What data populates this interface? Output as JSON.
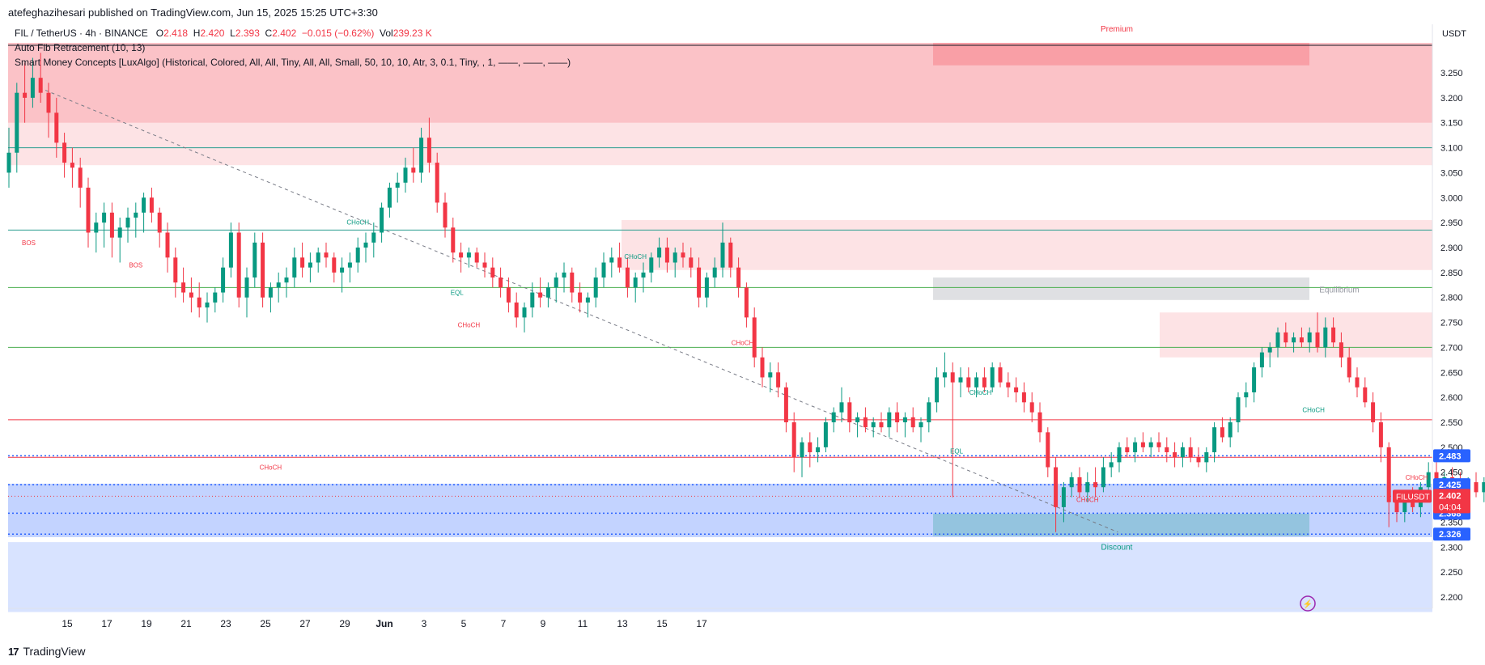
{
  "header": {
    "publisher": "atefeghazihesari published on TradingView.com, Jun 15, 2025 15:25 UTC+3:30"
  },
  "legend": {
    "symbol": "FIL / TetherUS · 4h · BINANCE",
    "o_label": "O",
    "o_value": "2.418",
    "h_label": "H",
    "h_value": "2.420",
    "l_label": "L",
    "l_value": "2.393",
    "c_label": "C",
    "c_value": "2.402",
    "change": "−0.015 (−0.62%)",
    "vol_label": "Vol",
    "vol_value": "239.23 K"
  },
  "indicators": [
    "Auto Fib Retracement (10, 13)",
    "Smart Money Concepts [LuxAlgo] (Historical, Colored, All, All, Tiny, All, All, Small, 50, 10, 10, Atr, 3, 0.1, Tiny, , 1, ——, ——, ——)"
  ],
  "brand": {
    "name": "TradingView"
  },
  "chart_data": {
    "type": "candlestick",
    "currency": "USDT",
    "symbol_tag": "FILUSDT",
    "last_price": "2.402",
    "countdown": "04:04",
    "ylim": [
      2.17,
      3.32
    ],
    "y_ticks": [
      "3.250",
      "3.200",
      "3.150",
      "3.100",
      "3.050",
      "3.000",
      "2.950",
      "2.900",
      "2.850",
      "2.800",
      "2.750",
      "2.700",
      "2.650",
      "2.600",
      "2.550",
      "2.500",
      "2.450",
      "2.400",
      "2.350",
      "2.300",
      "2.250",
      "2.200"
    ],
    "x_ticks": [
      "15",
      "17",
      "19",
      "21",
      "23",
      "25",
      "27",
      "29",
      "Jun",
      "3",
      "5",
      "7",
      "9",
      "11",
      "13",
      "15",
      "17"
    ],
    "price_labels": [
      {
        "value": 2.483,
        "text": "2.483"
      },
      {
        "value": 2.425,
        "text": "2.425"
      },
      {
        "value": 2.368,
        "text": "2.368"
      },
      {
        "value": 2.326,
        "text": "2.326"
      }
    ],
    "zone_labels": {
      "premium": "Premium",
      "equilibrium": "Equilibrium",
      "discount": "Discount"
    },
    "structure_labels": [
      {
        "text": "BOS",
        "x": 0.5,
        "y": 2.905,
        "color": "#f23645"
      },
      {
        "text": "BOS",
        "x": 3.2,
        "y": 2.86,
        "color": "#f23645"
      },
      {
        "text": "CHoCH",
        "x": 8.8,
        "y": 2.946,
        "color": "#089981"
      },
      {
        "text": "EQL",
        "x": 11.3,
        "y": 2.805,
        "color": "#089981"
      },
      {
        "text": "CHoCH",
        "x": 11.6,
        "y": 2.74,
        "color": "#f23645"
      },
      {
        "text": "CHoCH",
        "x": 15.8,
        "y": 2.877,
        "color": "#089981"
      },
      {
        "text": "CHoCH",
        "x": 18.5,
        "y": 2.705,
        "color": "#f23645"
      },
      {
        "text": "CHoCH",
        "x": 6.6,
        "y": 2.455,
        "color": "#f23645"
      },
      {
        "text": "CHoCH",
        "x": 24.5,
        "y": 2.605,
        "color": "#089981"
      },
      {
        "text": "EQL",
        "x": 23.9,
        "y": 2.488,
        "color": "#089981"
      },
      {
        "text": "CHoCH",
        "x": 27.2,
        "y": 2.39,
        "color": "#f23645"
      },
      {
        "text": "CHoCH",
        "x": 32.9,
        "y": 2.57,
        "color": "#089981"
      },
      {
        "text": "CHoCH",
        "x": 35.5,
        "y": 2.435,
        "color": "#f23645"
      }
    ],
    "candles": [
      [
        0.0,
        3.05,
        3.14,
        3.02,
        3.09
      ],
      [
        0.2,
        3.09,
        3.23,
        3.05,
        3.21
      ],
      [
        0.4,
        3.21,
        3.27,
        3.15,
        3.2
      ],
      [
        0.6,
        3.2,
        3.28,
        3.18,
        3.24
      ],
      [
        0.8,
        3.24,
        3.29,
        3.19,
        3.21
      ],
      [
        1.0,
        3.21,
        3.23,
        3.12,
        3.17
      ],
      [
        1.2,
        3.17,
        3.2,
        3.08,
        3.11
      ],
      [
        1.4,
        3.11,
        3.13,
        3.04,
        3.07
      ],
      [
        1.6,
        3.07,
        3.1,
        3.02,
        3.06
      ],
      [
        1.8,
        3.06,
        3.08,
        2.98,
        3.02
      ],
      [
        2.0,
        3.02,
        3.04,
        2.9,
        2.93
      ],
      [
        2.2,
        2.93,
        2.97,
        2.89,
        2.95
      ],
      [
        2.4,
        2.95,
        2.99,
        2.9,
        2.97
      ],
      [
        2.6,
        2.97,
        2.99,
        2.88,
        2.92
      ],
      [
        2.8,
        2.92,
        2.96,
        2.87,
        2.94
      ],
      [
        3.0,
        2.94,
        2.98,
        2.91,
        2.96
      ],
      [
        3.2,
        2.96,
        2.99,
        2.92,
        2.97
      ],
      [
        3.4,
        2.97,
        3.01,
        2.93,
        3.0
      ],
      [
        3.6,
        3.0,
        3.02,
        2.95,
        2.97
      ],
      [
        3.8,
        2.97,
        2.98,
        2.9,
        2.93
      ],
      [
        4.0,
        2.93,
        2.95,
        2.85,
        2.88
      ],
      [
        4.2,
        2.88,
        2.9,
        2.8,
        2.83
      ],
      [
        4.4,
        2.83,
        2.86,
        2.79,
        2.81
      ],
      [
        4.6,
        2.81,
        2.84,
        2.77,
        2.8
      ],
      [
        4.8,
        2.8,
        2.83,
        2.76,
        2.78
      ],
      [
        5.0,
        2.78,
        2.81,
        2.75,
        2.79
      ],
      [
        5.2,
        2.79,
        2.82,
        2.77,
        2.81
      ],
      [
        5.4,
        2.81,
        2.88,
        2.79,
        2.86
      ],
      [
        5.6,
        2.86,
        2.95,
        2.84,
        2.93
      ],
      [
        5.8,
        2.93,
        2.95,
        2.78,
        2.8
      ],
      [
        6.0,
        2.8,
        2.86,
        2.76,
        2.84
      ],
      [
        6.2,
        2.84,
        2.93,
        2.82,
        2.91
      ],
      [
        6.4,
        2.91,
        2.93,
        2.78,
        2.8
      ],
      [
        6.6,
        2.8,
        2.83,
        2.77,
        2.82
      ],
      [
        6.8,
        2.82,
        2.85,
        2.79,
        2.83
      ],
      [
        7.0,
        2.83,
        2.86,
        2.8,
        2.84
      ],
      [
        7.2,
        2.84,
        2.9,
        2.82,
        2.88
      ],
      [
        7.4,
        2.88,
        2.91,
        2.84,
        2.86
      ],
      [
        7.6,
        2.86,
        2.89,
        2.83,
        2.87
      ],
      [
        7.8,
        2.87,
        2.9,
        2.85,
        2.89
      ],
      [
        8.0,
        2.89,
        2.91,
        2.86,
        2.88
      ],
      [
        8.2,
        2.88,
        2.89,
        2.83,
        2.85
      ],
      [
        8.4,
        2.85,
        2.88,
        2.81,
        2.86
      ],
      [
        8.6,
        2.86,
        2.89,
        2.83,
        2.87
      ],
      [
        8.8,
        2.87,
        2.92,
        2.85,
        2.9
      ],
      [
        9.0,
        2.9,
        2.93,
        2.87,
        2.91
      ],
      [
        9.2,
        2.91,
        2.95,
        2.88,
        2.93
      ],
      [
        9.4,
        2.93,
        2.99,
        2.91,
        2.98
      ],
      [
        9.6,
        2.98,
        3.03,
        2.96,
        3.02
      ],
      [
        9.8,
        3.02,
        3.05,
        2.99,
        3.03
      ],
      [
        10.0,
        3.03,
        3.08,
        3.01,
        3.06
      ],
      [
        10.2,
        3.06,
        3.1,
        3.03,
        3.05
      ],
      [
        10.4,
        3.05,
        3.14,
        3.03,
        3.12
      ],
      [
        10.6,
        3.12,
        3.16,
        3.05,
        3.07
      ],
      [
        10.8,
        3.07,
        3.09,
        2.97,
        2.99
      ],
      [
        11.0,
        2.99,
        3.01,
        2.92,
        2.94
      ],
      [
        11.2,
        2.94,
        2.96,
        2.87,
        2.89
      ],
      [
        11.4,
        2.89,
        2.91,
        2.85,
        2.88
      ],
      [
        11.6,
        2.88,
        2.9,
        2.86,
        2.89
      ],
      [
        11.8,
        2.89,
        2.9,
        2.86,
        2.87
      ],
      [
        12.0,
        2.87,
        2.89,
        2.84,
        2.86
      ],
      [
        12.2,
        2.86,
        2.88,
        2.82,
        2.84
      ],
      [
        12.4,
        2.84,
        2.86,
        2.8,
        2.82
      ],
      [
        12.6,
        2.82,
        2.84,
        2.77,
        2.79
      ],
      [
        12.8,
        2.79,
        2.81,
        2.74,
        2.76
      ],
      [
        13.0,
        2.76,
        2.79,
        2.73,
        2.78
      ],
      [
        13.2,
        2.78,
        2.83,
        2.76,
        2.81
      ],
      [
        13.4,
        2.81,
        2.84,
        2.78,
        2.8
      ],
      [
        13.6,
        2.8,
        2.83,
        2.78,
        2.82
      ],
      [
        13.8,
        2.82,
        2.85,
        2.79,
        2.84
      ],
      [
        14.0,
        2.84,
        2.87,
        2.81,
        2.85
      ],
      [
        14.2,
        2.85,
        2.86,
        2.79,
        2.81
      ],
      [
        14.4,
        2.81,
        2.83,
        2.77,
        2.79
      ],
      [
        14.6,
        2.79,
        2.81,
        2.76,
        2.8
      ],
      [
        14.8,
        2.8,
        2.86,
        2.78,
        2.84
      ],
      [
        15.0,
        2.84,
        2.89,
        2.82,
        2.87
      ],
      [
        15.2,
        2.87,
        2.9,
        2.84,
        2.88
      ],
      [
        15.4,
        2.88,
        2.91,
        2.85,
        2.86
      ],
      [
        15.6,
        2.86,
        2.88,
        2.8,
        2.82
      ],
      [
        15.8,
        2.82,
        2.85,
        2.79,
        2.84
      ],
      [
        16.0,
        2.84,
        2.87,
        2.81,
        2.85
      ],
      [
        16.2,
        2.85,
        2.89,
        2.83,
        2.88
      ],
      [
        16.4,
        2.88,
        2.92,
        2.86,
        2.9
      ],
      [
        16.6,
        2.9,
        2.92,
        2.85,
        2.87
      ],
      [
        16.8,
        2.87,
        2.9,
        2.84,
        2.89
      ],
      [
        17.0,
        2.89,
        2.91,
        2.86,
        2.88
      ],
      [
        17.2,
        2.88,
        2.9,
        2.84,
        2.86
      ],
      [
        17.4,
        2.86,
        2.88,
        2.78,
        2.8
      ],
      [
        17.6,
        2.8,
        2.85,
        2.78,
        2.84
      ],
      [
        17.8,
        2.84,
        2.88,
        2.82,
        2.86
      ],
      [
        18.0,
        2.86,
        2.95,
        2.84,
        2.91
      ],
      [
        18.2,
        2.91,
        2.92,
        2.84,
        2.86
      ],
      [
        18.4,
        2.86,
        2.88,
        2.8,
        2.82
      ],
      [
        18.6,
        2.82,
        2.83,
        2.74,
        2.76
      ],
      [
        18.8,
        2.76,
        2.78,
        2.66,
        2.68
      ],
      [
        19.0,
        2.68,
        2.7,
        2.62,
        2.64
      ],
      [
        19.2,
        2.64,
        2.67,
        2.61,
        2.65
      ],
      [
        19.4,
        2.65,
        2.67,
        2.6,
        2.62
      ],
      [
        19.6,
        2.62,
        2.63,
        2.53,
        2.55
      ],
      [
        19.8,
        2.55,
        2.57,
        2.45,
        2.48
      ],
      [
        20.0,
        2.48,
        2.52,
        2.44,
        2.51
      ],
      [
        20.2,
        2.51,
        2.53,
        2.46,
        2.49
      ],
      [
        20.4,
        2.49,
        2.52,
        2.47,
        2.5
      ],
      [
        20.6,
        2.5,
        2.56,
        2.49,
        2.55
      ],
      [
        20.8,
        2.55,
        2.58,
        2.53,
        2.57
      ],
      [
        21.0,
        2.57,
        2.62,
        2.55,
        2.59
      ],
      [
        21.2,
        2.59,
        2.6,
        2.53,
        2.55
      ],
      [
        21.4,
        2.55,
        2.57,
        2.52,
        2.56
      ],
      [
        21.6,
        2.56,
        2.58,
        2.53,
        2.54
      ],
      [
        21.8,
        2.54,
        2.56,
        2.52,
        2.55
      ],
      [
        22.0,
        2.55,
        2.57,
        2.53,
        2.54
      ],
      [
        22.2,
        2.54,
        2.58,
        2.52,
        2.57
      ],
      [
        22.4,
        2.57,
        2.59,
        2.53,
        2.55
      ],
      [
        22.6,
        2.55,
        2.57,
        2.52,
        2.56
      ],
      [
        22.8,
        2.56,
        2.58,
        2.53,
        2.54
      ],
      [
        23.0,
        2.54,
        2.56,
        2.51,
        2.55
      ],
      [
        23.2,
        2.55,
        2.6,
        2.53,
        2.59
      ],
      [
        23.4,
        2.59,
        2.66,
        2.57,
        2.64
      ],
      [
        23.6,
        2.64,
        2.69,
        2.62,
        2.65
      ],
      [
        23.8,
        2.65,
        2.67,
        2.4,
        2.63
      ],
      [
        24.0,
        2.63,
        2.66,
        2.6,
        2.64
      ],
      [
        24.2,
        2.64,
        2.66,
        2.61,
        2.62
      ],
      [
        24.4,
        2.62,
        2.65,
        2.6,
        2.64
      ],
      [
        24.6,
        2.64,
        2.66,
        2.61,
        2.62
      ],
      [
        24.8,
        2.62,
        2.67,
        2.61,
        2.66
      ],
      [
        25.0,
        2.66,
        2.67,
        2.62,
        2.63
      ],
      [
        25.2,
        2.63,
        2.65,
        2.6,
        2.62
      ],
      [
        25.4,
        2.62,
        2.64,
        2.59,
        2.61
      ],
      [
        25.6,
        2.61,
        2.63,
        2.57,
        2.59
      ],
      [
        25.8,
        2.59,
        2.61,
        2.55,
        2.57
      ],
      [
        26.0,
        2.57,
        2.59,
        2.51,
        2.53
      ],
      [
        26.2,
        2.53,
        2.54,
        2.44,
        2.46
      ],
      [
        26.4,
        2.46,
        2.48,
        2.33,
        2.38
      ],
      [
        26.6,
        2.38,
        2.43,
        2.35,
        2.42
      ],
      [
        26.8,
        2.42,
        2.45,
        2.4,
        2.44
      ],
      [
        27.0,
        2.44,
        2.46,
        2.4,
        2.41
      ],
      [
        27.2,
        2.41,
        2.45,
        2.39,
        2.43
      ],
      [
        27.4,
        2.43,
        2.46,
        2.4,
        2.42
      ],
      [
        27.6,
        2.42,
        2.48,
        2.41,
        2.46
      ],
      [
        27.8,
        2.46,
        2.49,
        2.44,
        2.47
      ],
      [
        28.0,
        2.47,
        2.51,
        2.45,
        2.5
      ],
      [
        28.2,
        2.5,
        2.52,
        2.48,
        2.49
      ],
      [
        28.4,
        2.49,
        2.52,
        2.47,
        2.51
      ],
      [
        28.6,
        2.51,
        2.53,
        2.49,
        2.5
      ],
      [
        28.8,
        2.5,
        2.52,
        2.48,
        2.51
      ],
      [
        29.0,
        2.51,
        2.53,
        2.49,
        2.5
      ],
      [
        29.2,
        2.5,
        2.52,
        2.47,
        2.49
      ],
      [
        29.4,
        2.49,
        2.51,
        2.46,
        2.48
      ],
      [
        29.6,
        2.48,
        2.51,
        2.46,
        2.5
      ],
      [
        29.8,
        2.5,
        2.52,
        2.47,
        2.48
      ],
      [
        30.0,
        2.48,
        2.5,
        2.46,
        2.47
      ],
      [
        30.2,
        2.47,
        2.5,
        2.45,
        2.49
      ],
      [
        30.4,
        2.49,
        2.55,
        2.47,
        2.54
      ],
      [
        30.6,
        2.54,
        2.56,
        2.51,
        2.52
      ],
      [
        30.8,
        2.52,
        2.56,
        2.5,
        2.55
      ],
      [
        31.0,
        2.55,
        2.61,
        2.53,
        2.6
      ],
      [
        31.2,
        2.6,
        2.63,
        2.58,
        2.61
      ],
      [
        31.4,
        2.61,
        2.67,
        2.59,
        2.66
      ],
      [
        31.6,
        2.66,
        2.7,
        2.64,
        2.69
      ],
      [
        31.8,
        2.69,
        2.71,
        2.66,
        2.7
      ],
      [
        32.0,
        2.7,
        2.74,
        2.68,
        2.73
      ],
      [
        32.2,
        2.73,
        2.75,
        2.7,
        2.71
      ],
      [
        32.4,
        2.71,
        2.73,
        2.69,
        2.72
      ],
      [
        32.6,
        2.72,
        2.74,
        2.7,
        2.71
      ],
      [
        32.8,
        2.71,
        2.74,
        2.69,
        2.73
      ],
      [
        33.0,
        2.73,
        2.77,
        2.69,
        2.7
      ],
      [
        33.2,
        2.7,
        2.76,
        2.68,
        2.74
      ],
      [
        33.4,
        2.74,
        2.76,
        2.7,
        2.71
      ],
      [
        33.6,
        2.71,
        2.73,
        2.66,
        2.68
      ],
      [
        33.8,
        2.68,
        2.7,
        2.63,
        2.64
      ],
      [
        34.0,
        2.64,
        2.66,
        2.6,
        2.62
      ],
      [
        34.2,
        2.62,
        2.64,
        2.58,
        2.59
      ],
      [
        34.4,
        2.59,
        2.61,
        2.53,
        2.55
      ],
      [
        34.6,
        2.55,
        2.57,
        2.47,
        2.5
      ],
      [
        34.8,
        2.5,
        2.51,
        2.34,
        2.39
      ],
      [
        35.0,
        2.39,
        2.41,
        2.35,
        2.37
      ],
      [
        35.2,
        2.37,
        2.41,
        2.35,
        2.4
      ],
      [
        35.4,
        2.4,
        2.42,
        2.37,
        2.38
      ],
      [
        35.6,
        2.38,
        2.43,
        2.36,
        2.42
      ],
      [
        35.8,
        2.42,
        2.47,
        2.4,
        2.45
      ],
      [
        36.0,
        2.45,
        2.47,
        2.41,
        2.42
      ],
      [
        36.2,
        2.42,
        2.45,
        2.4,
        2.44
      ],
      [
        36.4,
        2.44,
        2.46,
        2.42,
        2.43
      ],
      [
        36.6,
        2.43,
        2.45,
        2.4,
        2.42
      ],
      [
        36.8,
        2.42,
        2.44,
        2.39,
        2.43
      ],
      [
        37.0,
        2.43,
        2.45,
        2.4,
        2.41
      ],
      [
        37.2,
        2.41,
        2.44,
        2.39,
        2.43
      ],
      [
        37.4,
        2.43,
        2.44,
        2.41,
        2.42
      ],
      [
        37.6,
        2.418,
        2.42,
        2.393,
        2.402
      ]
    ]
  }
}
